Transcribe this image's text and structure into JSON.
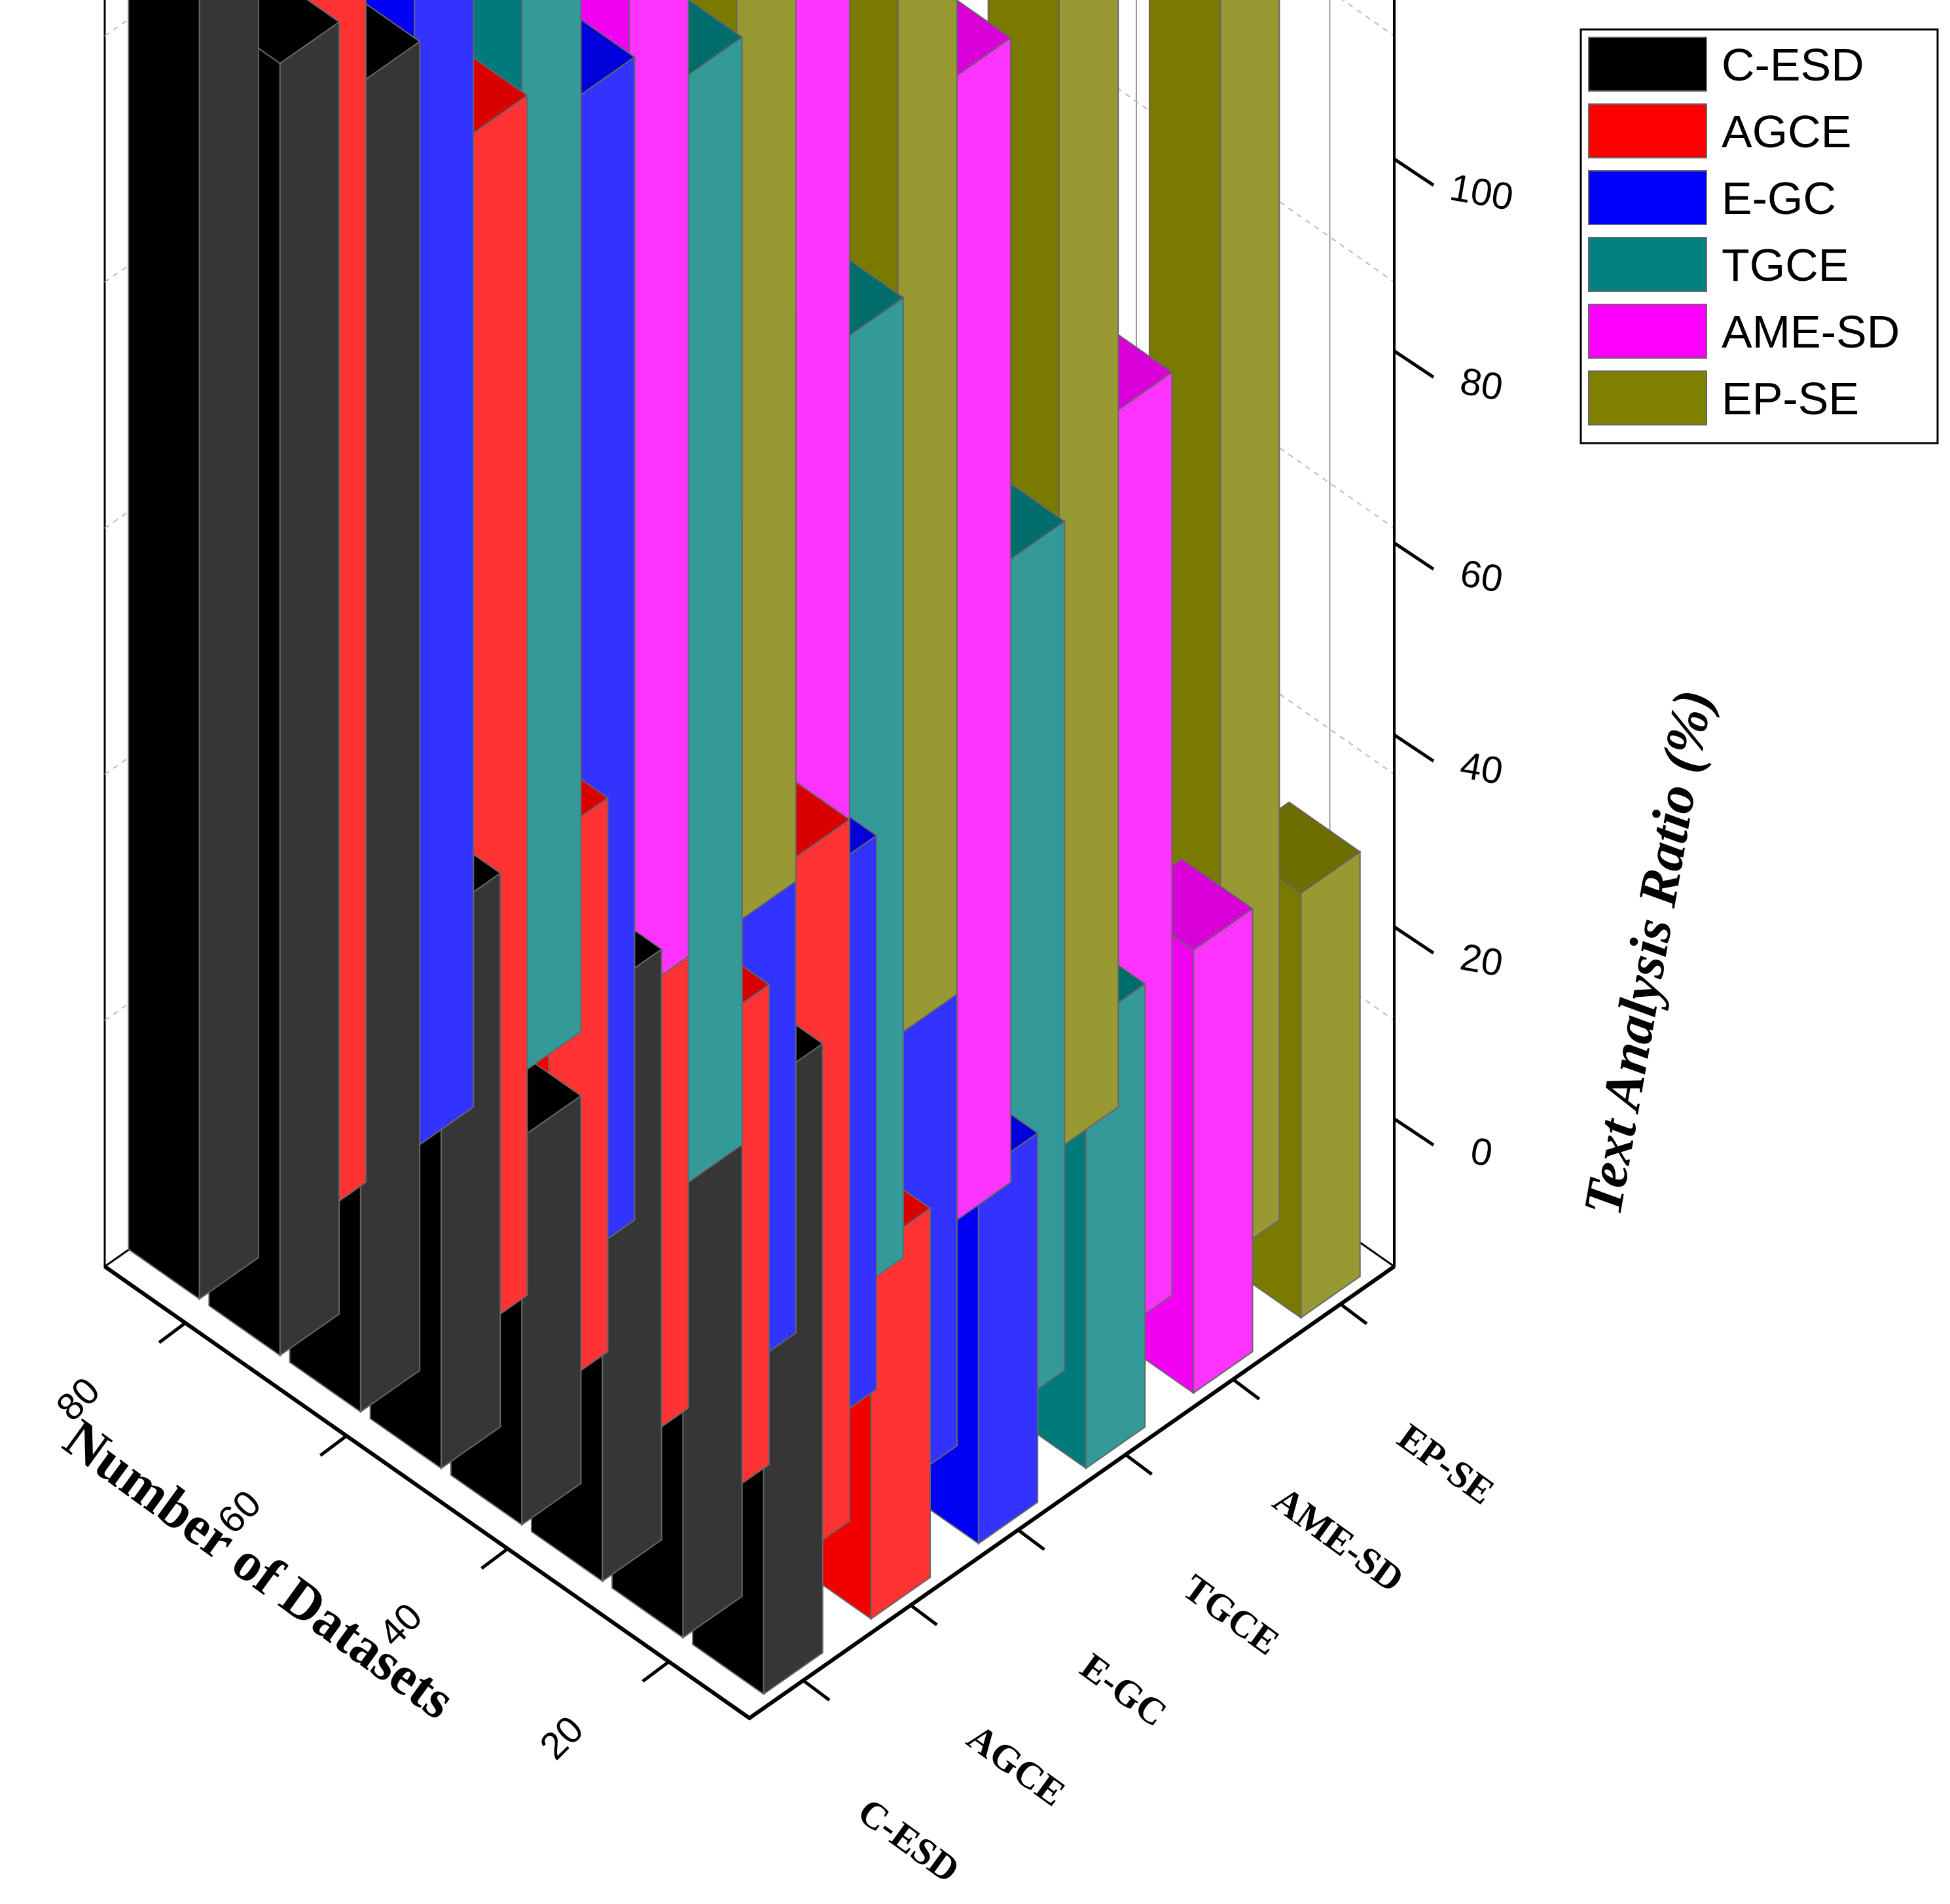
{
  "chart_data": {
    "type": "bar3d",
    "title": "",
    "zlabel": "Text Analysis Ratio (%)",
    "xlabel": "Number of Datasets",
    "ylabel": "",
    "zlim": [
      0,
      100
    ],
    "z_ticks": [
      "0",
      "20",
      "40",
      "60",
      "80",
      "100"
    ],
    "x_categories": [
      "80",
      "60",
      "40",
      "20"
    ],
    "y_categories": [
      "C-ESD",
      "AGCE",
      "E-GC",
      "TGCE",
      "AME-SD",
      "EP-SE"
    ],
    "legend_position": "top-right",
    "series": [
      {
        "name": "C-ESD",
        "color": "#000000",
        "values": [
          80,
          72,
          21,
          58
        ]
      },
      {
        "name": "AGCE",
        "color": "#ff0000",
        "values": [
          73,
          65,
          60,
          38
        ]
      },
      {
        "name": "E-GC",
        "color": "#0000ff",
        "values": [
          77,
          63,
          55,
          44
        ]
      },
      {
        "name": "TGCE",
        "color": "#008080",
        "values": [
          74,
          60,
          52,
          46
        ]
      },
      {
        "name": "AME-SD",
        "color": "#ff00ff",
        "values": [
          80,
          70,
          62,
          50
        ]
      },
      {
        "name": "EP-SE",
        "color": "#808000",
        "values": [
          92,
          88,
          80,
          79
        ]
      }
    ],
    "extra_bars": [
      {
        "row": "C-ESD",
        "values": [
          70,
          30,
          32,
          33
        ]
      },
      {
        "row": "AGCE",
        "values": [
          30,
          26,
          20
        ]
      },
      {
        "row": "E-GC",
        "values": [
          30,
          20
        ]
      },
      {
        "row": "TGCE",
        "values": [
          24
        ]
      },
      {
        "row": "AME-SD",
        "values": [
          24
        ]
      },
      {
        "row": "EP-SE",
        "values": [
          23
        ]
      }
    ]
  }
}
